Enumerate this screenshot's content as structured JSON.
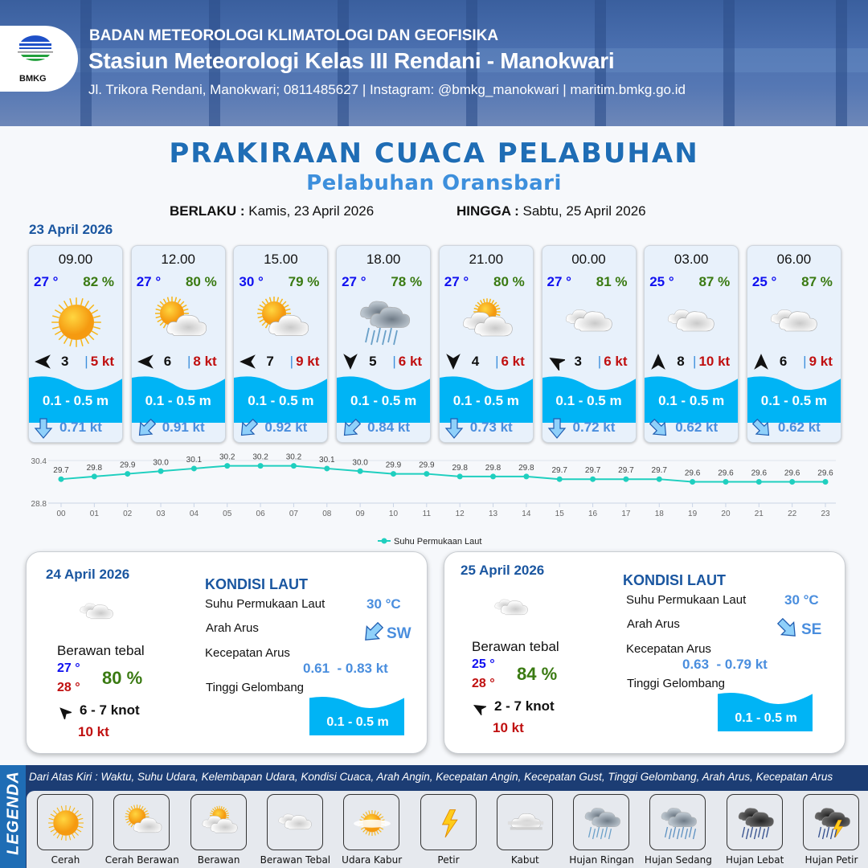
{
  "header": {
    "logo_text": "BMKG",
    "agency": "BADAN METEOROLOGI KLIMATOLOGI DAN GEOFISIKA",
    "station": "Stasiun Meteorologi Kelas III Rendani - Manokwari",
    "contact": "Jl. Trikora Rendani, Manokwari; 0811485627 | Instagram: @bmkg_manokwari | maritim.bmkg.go.id"
  },
  "title": "PRAKIRAAN CUACA PELABUHAN",
  "subtitle": "Pelabuhan Oransbari",
  "validity": {
    "from_label": "BERLAKU :",
    "from": "Kamis, 23 April 2026",
    "to_label": "HINGGA :",
    "to": "Sabtu, 25 April 2026"
  },
  "day1": {
    "date": "23 April 2026",
    "cards": [
      {
        "time": "09.00",
        "temp": "27 °",
        "hum": "82 %",
        "icon": "sun",
        "wind_dir_deg": -90,
        "wind": "3",
        "gust": "5 kt",
        "wave": "0.1 - 0.5 m",
        "current_dir_deg": 0,
        "current": "0.71 kt"
      },
      {
        "time": "12.00",
        "temp": "27 °",
        "hum": "80 %",
        "icon": "sun-cloud",
        "wind_dir_deg": -90,
        "wind": "6",
        "gust": "8 kt",
        "wave": "0.1 - 0.5 m",
        "current_dir_deg": 45,
        "current": "0.91 kt"
      },
      {
        "time": "15.00",
        "temp": "30 °",
        "hum": "79 %",
        "icon": "sun-cloud",
        "wind_dir_deg": -90,
        "wind": "7",
        "gust": "9 kt",
        "wave": "0.1 - 0.5 m",
        "current_dir_deg": 45,
        "current": "0.92 kt"
      },
      {
        "time": "18.00",
        "temp": "27 °",
        "hum": "78 %",
        "icon": "rain",
        "wind_dir_deg": 180,
        "wind": "5",
        "gust": "6 kt",
        "wave": "0.1 - 0.5 m",
        "current_dir_deg": 45,
        "current": "0.84 kt"
      },
      {
        "time": "21.00",
        "temp": "27 °",
        "hum": "80 %",
        "icon": "cloudy",
        "wind_dir_deg": 180,
        "wind": "4",
        "gust": "6 kt",
        "wave": "0.1 - 0.5 m",
        "current_dir_deg": 0,
        "current": "0.73 kt"
      },
      {
        "time": "00.00",
        "temp": "27 °",
        "hum": "81 %",
        "icon": "overcast",
        "wind_dir_deg": -60,
        "wind": "3",
        "gust": "6 kt",
        "wave": "0.1 - 0.5 m",
        "current_dir_deg": 0,
        "current": "0.72 kt"
      },
      {
        "time": "03.00",
        "temp": "25 °",
        "hum": "87 %",
        "icon": "overcast",
        "wind_dir_deg": 0,
        "wind": "8",
        "gust": "10 kt",
        "wave": "0.1 - 0.5 m",
        "current_dir_deg": -45,
        "current": "0.62 kt"
      },
      {
        "time": "06.00",
        "temp": "25 °",
        "hum": "87 %",
        "icon": "overcast",
        "wind_dir_deg": 0,
        "wind": "6",
        "gust": "9 kt",
        "wave": "0.1 - 0.5 m",
        "current_dir_deg": -45,
        "current": "0.62 kt"
      }
    ]
  },
  "chart_data": {
    "type": "line",
    "categories": [
      "00",
      "01",
      "02",
      "03",
      "04",
      "05",
      "06",
      "07",
      "08",
      "09",
      "10",
      "11",
      "12",
      "13",
      "14",
      "15",
      "16",
      "17",
      "18",
      "19",
      "20",
      "21",
      "22",
      "23"
    ],
    "series": [
      {
        "name": "Suhu Permukaan Laut",
        "color": "#1fcfbf",
        "values": [
          29.7,
          29.8,
          29.9,
          30.0,
          30.1,
          30.2,
          30.2,
          30.2,
          30.1,
          30.0,
          29.9,
          29.9,
          29.8,
          29.8,
          29.8,
          29.7,
          29.7,
          29.7,
          29.7,
          29.6,
          29.6,
          29.6,
          29.6,
          29.6
        ]
      }
    ],
    "yticks": [
      "30.4",
      "28.8"
    ],
    "ylim": [
      28.8,
      30.4
    ],
    "legend": "bottom-center",
    "grid": true
  },
  "panels": [
    {
      "date": "24 April 2026",
      "icon": "overcast",
      "condition": "Berawan tebal",
      "tmin": "27 °",
      "tmax": "28 °",
      "hum": "80 %",
      "wind_dir_deg": -45,
      "wind": "6  - 7 knot",
      "gust": "10 kt",
      "sea_title": "KONDISI LAUT",
      "sst_label": "Suhu Permukaan Laut",
      "sst": "30 °C",
      "dir_label": "Arah Arus",
      "current_dir": "SW",
      "current_dir_deg": 45,
      "speed_label": "Kecepatan Arus",
      "speed": "0.61  - 0.83 kt",
      "wave_label": "Tinggi Gelombang",
      "wave": "0.1 - 0.5 m"
    },
    {
      "date": "25 April 2026",
      "icon": "overcast",
      "condition": "Berawan tebal",
      "tmin": "25 °",
      "tmax": "28 °",
      "hum": "84 %",
      "wind_dir_deg": -60,
      "wind": "2  - 7 knot",
      "gust": "10 kt",
      "sea_title": "KONDISI LAUT",
      "sst_label": "Suhu Permukaan Laut",
      "sst": "30 °C",
      "dir_label": "Arah Arus",
      "current_dir": "SE",
      "current_dir_deg": -45,
      "speed_label": "Kecepatan Arus",
      "speed": "0.63  - 0.79 kt",
      "wave_label": "Tinggi Gelombang",
      "wave": "0.1 - 0.5 m"
    }
  ],
  "legend": {
    "title": "LEGENDA",
    "description": "Dari Atas Kiri : Waktu, Suhu Udara, Kelembapan Udara, Kondisi Cuaca, Arah Angin, Kecepatan Angin, Kecepatan Gust, Tinggi Gelombang, Arah Arus, Kecepatan Arus",
    "items": [
      {
        "label": "Cerah",
        "icon": "sun"
      },
      {
        "label": "Cerah Berawan",
        "icon": "sun-cloud"
      },
      {
        "label": "Berawan",
        "icon": "cloudy"
      },
      {
        "label": "Berawan Tebal",
        "icon": "overcast"
      },
      {
        "label": "Udara Kabur",
        "icon": "haze"
      },
      {
        "label": "Petir",
        "icon": "lightning"
      },
      {
        "label": "Kabut",
        "icon": "fog"
      },
      {
        "label": "Hujan Ringan",
        "icon": "rain"
      },
      {
        "label": "Hujan Sedang",
        "icon": "rain-moderate"
      },
      {
        "label": "Hujan Lebat",
        "icon": "rain-heavy"
      },
      {
        "label": "Hujan Petir",
        "icon": "thunderstorm"
      }
    ]
  },
  "colors": {
    "brand": "#1f6db5",
    "wave": "#00b4f5",
    "temp": "#1010f0",
    "humidity": "#3a7a12",
    "gust": "#c01010",
    "current": "#4a8ede"
  }
}
